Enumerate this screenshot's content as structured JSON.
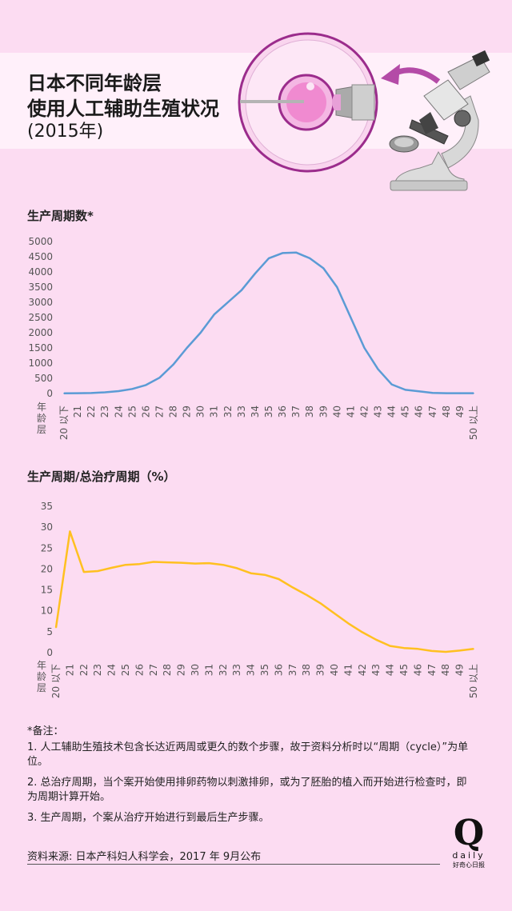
{
  "header": {
    "title_line1": "日本不同年龄层",
    "title_line2": "使用人工辅助生殖状况",
    "subtitle": "(2015年)"
  },
  "colors": {
    "background": "#fcdcf2",
    "line_cycles": "#5b9bd5",
    "line_ratio": "#ffc020",
    "accent_purple": "#9b2c8c"
  },
  "illustration": {
    "icons": [
      "egg-injection-icon",
      "arrow-icon",
      "microscope-icon"
    ]
  },
  "chart_data": [
    {
      "type": "line",
      "title": "生产周期数*",
      "xlabel": "年龄层",
      "ylabel": "",
      "categories": [
        "20 以下",
        "21",
        "22",
        "23",
        "24",
        "25",
        "26",
        "27",
        "28",
        "29",
        "30",
        "31",
        "32",
        "33",
        "34",
        "35",
        "36",
        "37",
        "38",
        "39",
        "40",
        "41",
        "42",
        "43",
        "44",
        "45",
        "46",
        "47",
        "48",
        "49",
        "50 以上"
      ],
      "ylim": [
        0,
        5000
      ],
      "yticks": [
        "0",
        "500",
        "1000",
        "1500",
        "2000",
        "2500",
        "3000",
        "3500",
        "4000",
        "4500",
        "5000"
      ],
      "series": [
        {
          "values": [
            5,
            10,
            15,
            40,
            80,
            150,
            280,
            520,
            950,
            1500,
            2000,
            2600,
            3000,
            3400,
            3950,
            4450,
            4620,
            4640,
            4450,
            4120,
            3500,
            2500,
            1500,
            800,
            300,
            120,
            70,
            20,
            10,
            10,
            10
          ]
        }
      ],
      "grid": false
    },
    {
      "type": "line",
      "title": "生产周期/总治疗周期（%）",
      "xlabel": "年龄层",
      "ylabel": "",
      "categories": [
        "20 以下",
        "21",
        "22",
        "23",
        "24",
        "25",
        "26",
        "27",
        "28",
        "29",
        "30",
        "31",
        "32",
        "33",
        "34",
        "35",
        "36",
        "37",
        "38",
        "39",
        "40",
        "41",
        "42",
        "43",
        "44",
        "45",
        "46",
        "47",
        "48",
        "49",
        "50 以上"
      ],
      "ylim": [
        0,
        35
      ],
      "yticks": [
        "0",
        "5",
        "10",
        "15",
        "20",
        "25",
        "30",
        "35"
      ],
      "series": [
        {
          "values": [
            6,
            29,
            19.3,
            19.5,
            20.3,
            21,
            21.2,
            21.7,
            21.6,
            21.5,
            21.3,
            21.4,
            21,
            20.2,
            19,
            18.6,
            17.6,
            15.6,
            13.8,
            11.8,
            9.4,
            7,
            4.9,
            3.1,
            1.6,
            1.1,
            0.9,
            0.4,
            0.2,
            0.5,
            0.9
          ]
        }
      ],
      "grid": false
    }
  ],
  "notes": {
    "heading": "*备注：",
    "items": [
      "1. 人工辅助生殖技术包含长达近两周或更久的数个步骤，故于资料分析时以“周期（cycle）”为单位。",
      "2. 总治疗周期，当个案开始使用排卵药物以刺激排卵，或为了胚胎的植入而开始进行检查时，即为周期计算开始。",
      "3. 生产周期，个案从治疗开始进行到最后生产步骤。"
    ]
  },
  "source": "资料来源: 日本产科妇人科学会，2017 年 9月公布",
  "logo": {
    "mark": "Q",
    "wordmark": "daily",
    "tagline": "好奇心日报"
  }
}
